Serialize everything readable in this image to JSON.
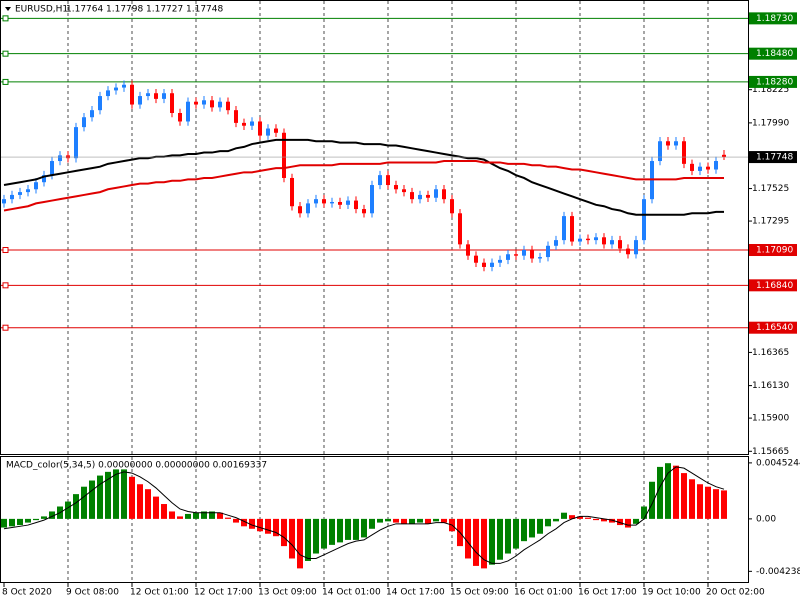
{
  "chart_data": [
    {
      "type": "candlestick",
      "title": "EURUSD,H1",
      "categories": [
        "8 Oct 2020",
        null,
        null,
        null,
        null,
        null,
        null,
        null,
        "9 Oct 08:00",
        null,
        null,
        null,
        null,
        null,
        null,
        null,
        "12 Oct 01:00",
        null,
        null,
        null,
        null,
        null,
        null,
        null,
        "12 Oct 17:00",
        null,
        null,
        null,
        null,
        null,
        null,
        null,
        "13 Oct 09:00",
        null,
        null,
        null,
        null,
        null,
        null,
        null,
        "14 Oct 01:00",
        null,
        null,
        null,
        null,
        null,
        null,
        null,
        "14 Oct 17:00",
        null,
        null,
        null,
        null,
        null,
        null,
        null,
        "15 Oct 09:00",
        null,
        null,
        null,
        null,
        null,
        null,
        null,
        "16 Oct 01:00",
        null,
        null,
        null,
        null,
        null,
        null,
        null,
        "16 Oct 17:00",
        null,
        null,
        null,
        null,
        null,
        null,
        null,
        "19 Oct 10:00",
        null,
        null,
        null,
        null,
        null,
        null,
        null,
        "20 Oct 02:00",
        null,
        null
      ],
      "open": [
        1.1742,
        1.1745,
        1.1748,
        1.175,
        1.1752,
        1.1757,
        1.1762,
        1.1772,
        1.1776,
        1.1774,
        1.1796,
        1.1803,
        1.1808,
        1.1818,
        1.1822,
        1.1824,
        1.1826,
        1.1812,
        1.1818,
        1.182,
        1.1816,
        1.182,
        1.1806,
        1.18,
        1.1814,
        1.1812,
        1.1815,
        1.181,
        1.1814,
        1.1808,
        1.1799,
        1.1797,
        1.18,
        1.179,
        1.1795,
        1.1792,
        1.176,
        1.174,
        1.1735,
        1.1742,
        1.1745,
        1.1742,
        1.1743,
        1.1741,
        1.1744,
        1.1738,
        1.1735,
        1.1755,
        1.1762,
        1.1755,
        1.1752,
        1.175,
        1.1745,
        1.1748,
        1.1746,
        1.1752,
        1.1745,
        1.1735,
        1.1713,
        1.1705,
        1.17,
        1.1697,
        1.17,
        1.1702,
        1.1706,
        1.1705,
        1.1709,
        1.1703,
        1.1704,
        1.1712,
        1.1716,
        1.1733,
        1.1715,
        1.1717,
        1.1716,
        1.1718,
        1.1713,
        1.1716,
        1.171,
        1.1706,
        1.1716,
        1.1745,
        1.1772,
        1.1786,
        1.1783,
        1.1786,
        1.177,
        1.1765,
        1.1768,
        1.1766,
        1.17764
      ],
      "high": [
        1.1748,
        1.1751,
        1.1753,
        1.1755,
        1.176,
        1.1765,
        1.1775,
        1.1779,
        1.1779,
        1.1799,
        1.1806,
        1.1811,
        1.1821,
        1.1825,
        1.1827,
        1.1829,
        1.1829,
        1.1821,
        1.1823,
        1.1823,
        1.1823,
        1.1823,
        1.1809,
        1.1817,
        1.1817,
        1.1818,
        1.1818,
        1.1817,
        1.1817,
        1.1811,
        1.1802,
        1.1803,
        1.1803,
        1.1798,
        1.1798,
        1.1795,
        1.1763,
        1.1743,
        1.1745,
        1.1748,
        1.1748,
        1.1746,
        1.1746,
        1.1747,
        1.1747,
        1.1741,
        1.1758,
        1.1765,
        1.1765,
        1.1758,
        1.1755,
        1.1753,
        1.1751,
        1.1751,
        1.1755,
        1.1755,
        1.1748,
        1.1738,
        1.1716,
        1.1708,
        1.1703,
        1.1703,
        1.1705,
        1.1709,
        1.1709,
        1.1712,
        1.1712,
        1.1707,
        1.1715,
        1.1719,
        1.1736,
        1.1736,
        1.172,
        1.172,
        1.1721,
        1.1721,
        1.1719,
        1.1719,
        1.1713,
        1.1719,
        1.1748,
        1.1775,
        1.1789,
        1.1789,
        1.1789,
        1.1789,
        1.1773,
        1.1771,
        1.1771,
        1.1775,
        1.17798
      ],
      "low": [
        1.1739,
        1.1742,
        1.1745,
        1.1747,
        1.1749,
        1.1754,
        1.1759,
        1.1769,
        1.1771,
        1.1771,
        1.1793,
        1.18,
        1.1805,
        1.1815,
        1.1819,
        1.1821,
        1.1809,
        1.1809,
        1.1815,
        1.1813,
        1.1813,
        1.1803,
        1.1797,
        1.1797,
        1.1809,
        1.1809,
        1.1807,
        1.1807,
        1.1805,
        1.1796,
        1.1794,
        1.1794,
        1.1787,
        1.1787,
        1.1789,
        1.1757,
        1.1737,
        1.1732,
        1.1732,
        1.1739,
        1.1739,
        1.1739,
        1.1738,
        1.1738,
        1.1735,
        1.1732,
        1.1732,
        1.1752,
        1.1752,
        1.1749,
        1.1747,
        1.1742,
        1.1742,
        1.1743,
        1.1743,
        1.1742,
        1.1732,
        1.171,
        1.1702,
        1.1697,
        1.1694,
        1.1694,
        1.1697,
        1.1699,
        1.1702,
        1.1702,
        1.17,
        1.17,
        1.1701,
        1.1709,
        1.1713,
        1.1712,
        1.1712,
        1.1713,
        1.1713,
        1.171,
        1.171,
        1.1707,
        1.1703,
        1.1703,
        1.1713,
        1.1742,
        1.1769,
        1.178,
        1.178,
        1.1767,
        1.1762,
        1.1762,
        1.1763,
        1.1763,
        1.17727
      ],
      "close": [
        1.1745,
        1.1748,
        1.175,
        1.1752,
        1.1757,
        1.1762,
        1.1772,
        1.1776,
        1.1774,
        1.1796,
        1.1803,
        1.1808,
        1.1818,
        1.1822,
        1.1824,
        1.1826,
        1.1812,
        1.1818,
        1.182,
        1.1816,
        1.182,
        1.1806,
        1.18,
        1.1814,
        1.1812,
        1.1815,
        1.181,
        1.1814,
        1.1808,
        1.1799,
        1.1797,
        1.18,
        1.179,
        1.1795,
        1.1792,
        1.176,
        1.174,
        1.1735,
        1.1742,
        1.1745,
        1.1742,
        1.1743,
        1.1741,
        1.1744,
        1.1738,
        1.1735,
        1.1755,
        1.1762,
        1.1755,
        1.1752,
        1.175,
        1.1745,
        1.1748,
        1.1746,
        1.1752,
        1.1745,
        1.1735,
        1.1713,
        1.1705,
        1.17,
        1.1697,
        1.17,
        1.1702,
        1.1706,
        1.1705,
        1.1709,
        1.1703,
        1.1704,
        1.1712,
        1.1716,
        1.1733,
        1.1715,
        1.1717,
        1.1716,
        1.1718,
        1.1713,
        1.1716,
        1.171,
        1.1706,
        1.1716,
        1.1745,
        1.1772,
        1.1786,
        1.1783,
        1.1786,
        1.177,
        1.1765,
        1.1768,
        1.1766,
        1.1772,
        1.17748
      ],
      "up_color": "#1e7fff",
      "down_color": "#ff0000",
      "overlays": [
        {
          "color": "#000000",
          "values": [
            1.1755,
            1.1756,
            1.1757,
            1.1758,
            1.1759,
            1.1761,
            1.1762,
            1.1763,
            1.1764,
            1.1765,
            1.1766,
            1.1767,
            1.1768,
            1.177,
            1.1771,
            1.1772,
            1.1773,
            1.1774,
            1.1774,
            1.1775,
            1.1775,
            1.1776,
            1.1776,
            1.1777,
            1.1777,
            1.1778,
            1.1778,
            1.1779,
            1.1779,
            1.1781,
            1.1782,
            1.1784,
            1.1785,
            1.1786,
            1.1787,
            1.1787,
            1.1787,
            1.1787,
            1.1787,
            1.1786,
            1.1786,
            1.1786,
            1.1785,
            1.1785,
            1.1785,
            1.1784,
            1.1784,
            1.1784,
            1.1783,
            1.1783,
            1.1782,
            1.1781,
            1.178,
            1.1779,
            1.1778,
            1.1777,
            1.1776,
            1.1775,
            1.1774,
            1.1774,
            1.1773,
            1.177,
            1.1767,
            1.1765,
            1.1762,
            1.176,
            1.1757,
            1.1755,
            1.1753,
            1.1751,
            1.1749,
            1.1747,
            1.1745,
            1.1743,
            1.1741,
            1.174,
            1.1738,
            1.1737,
            1.1735,
            1.1734,
            1.1734,
            1.1734,
            1.1734,
            1.1734,
            1.1734,
            1.1734,
            1.1735,
            1.1735,
            1.1735,
            1.1736,
            1.1736
          ]
        },
        {
          "color": "#e00000",
          "values": [
            1.1737,
            1.1738,
            1.1739,
            1.174,
            1.1742,
            1.1743,
            1.1744,
            1.1745,
            1.1746,
            1.1747,
            1.1748,
            1.1749,
            1.175,
            1.1752,
            1.1753,
            1.1754,
            1.1755,
            1.1756,
            1.1756,
            1.1757,
            1.1757,
            1.1758,
            1.1758,
            1.1759,
            1.1759,
            1.176,
            1.176,
            1.1761,
            1.1762,
            1.1763,
            1.1764,
            1.1764,
            1.1765,
            1.1766,
            1.1767,
            1.1767,
            1.1768,
            1.1769,
            1.1769,
            1.1769,
            1.1769,
            1.1769,
            1.177,
            1.177,
            1.177,
            1.177,
            1.177,
            1.177,
            1.1771,
            1.1771,
            1.1771,
            1.1771,
            1.1771,
            1.1771,
            1.1771,
            1.1772,
            1.1772,
            1.1772,
            1.1772,
            1.1772,
            1.1771,
            1.1771,
            1.1771,
            1.177,
            1.177,
            1.177,
            1.1769,
            1.1769,
            1.1768,
            1.1768,
            1.1767,
            1.1766,
            1.1766,
            1.1765,
            1.1764,
            1.1763,
            1.1762,
            1.1761,
            1.176,
            1.1759,
            1.1759,
            1.1759,
            1.1759,
            1.1759,
            1.1759,
            1.176,
            1.176,
            1.176,
            1.176,
            1.176,
            1.176
          ]
        }
      ],
      "levels": [
        {
          "value": 1.1873,
          "label": "1.18730",
          "color": "#008000"
        },
        {
          "value": 1.1848,
          "label": "1.18480",
          "color": "#008000"
        },
        {
          "value": 1.1828,
          "label": "1.18280",
          "color": "#008000"
        },
        {
          "value": 1.1709,
          "label": "1.17090",
          "color": "#e00000"
        },
        {
          "value": 1.1684,
          "label": "1.16840",
          "color": "#e00000"
        },
        {
          "value": 1.1654,
          "label": "1.16540",
          "color": "#e00000"
        }
      ],
      "ylim": [
        1.1566,
        1.1886
      ],
      "yticks": [
        1.18225,
        {
          "value": 1.1799,
          "label": "1.17990"
        },
        1.17525,
        1.17295,
        1.16365,
        {
          "value": 1.1613,
          "label": "1.16130"
        },
        {
          "value": 1.159,
          "label": "1.15900"
        },
        1.15665
      ],
      "grid": true
    },
    {
      "type": "macd",
      "title": "MACD_color(5,34,5) 0.00000000 0.00000000 0.00169337",
      "values": [
        -0.0007,
        -0.0006,
        -0.0005,
        -0.0003,
        -0.0001,
        0.0002,
        0.0006,
        0.001,
        0.0014,
        0.002,
        0.0026,
        0.0031,
        0.0035,
        0.0038,
        0.004,
        0.004,
        0.0034,
        0.0028,
        0.0024,
        0.0018,
        0.0012,
        0.0006,
        0.0002,
        0.0004,
        0.0005,
        0.0006,
        0.0006,
        0.0005,
        0.0001,
        -0.0003,
        -0.0006,
        -0.0008,
        -0.001,
        -0.0012,
        -0.0014,
        -0.0022,
        -0.0032,
        -0.004,
        -0.0034,
        -0.0028,
        -0.0024,
        -0.0021,
        -0.0019,
        -0.0017,
        -0.0017,
        -0.0015,
        -0.0008,
        -0.0003,
        -0.0002,
        -0.0003,
        -0.0004,
        -0.0004,
        -0.0003,
        -0.0004,
        -0.0002,
        -0.0003,
        -0.001,
        -0.0022,
        -0.0032,
        -0.0038,
        -0.004,
        -0.0037,
        -0.0033,
        -0.0028,
        -0.0024,
        -0.0018,
        -0.0015,
        -0.0012,
        -0.0006,
        -0.0002,
        0.0005,
        0.0003,
        0.0002,
        0.0001,
        -0.0001,
        -0.0002,
        -0.0003,
        -0.0005,
        -0.0007,
        -0.0004,
        0.001,
        0.003,
        0.0042,
        0.0045,
        0.0043,
        0.0037,
        0.0032,
        0.0028,
        0.0026,
        0.0024,
        0.0023
      ],
      "signal": [
        -0.0008,
        -0.0007,
        -0.0006,
        -0.0005,
        -0.0003,
        -0.0001,
        0.0002,
        0.0005,
        0.0009,
        0.0013,
        0.0018,
        0.0023,
        0.0028,
        0.0032,
        0.0036,
        0.0038,
        0.0037,
        0.0034,
        0.003,
        0.0025,
        0.0019,
        0.0013,
        0.0008,
        0.0006,
        0.0005,
        0.0005,
        0.0005,
        0.0005,
        0.0003,
        0.0001,
        -0.0002,
        -0.0005,
        -0.0007,
        -0.0009,
        -0.0011,
        -0.0015,
        -0.0021,
        -0.0029,
        -0.0032,
        -0.0032,
        -0.0029,
        -0.0026,
        -0.0023,
        -0.002,
        -0.0018,
        -0.0017,
        -0.0013,
        -0.0009,
        -0.0006,
        -0.0004,
        -0.0004,
        -0.0004,
        -0.0004,
        -0.0004,
        -0.0003,
        -0.0003,
        -0.0005,
        -0.0011,
        -0.0019,
        -0.0027,
        -0.0033,
        -0.0036,
        -0.0036,
        -0.0034,
        -0.003,
        -0.0025,
        -0.0021,
        -0.0017,
        -0.0012,
        -0.0008,
        -0.0003,
        0.0,
        0.0002,
        0.0002,
        0.0001,
        0.0,
        -0.0001,
        -0.0003,
        -0.0005,
        -0.0005,
        0.0,
        0.0012,
        0.0026,
        0.0037,
        0.0042,
        0.0041,
        0.0037,
        0.0033,
        0.0029,
        0.0026,
        0.0024
      ],
      "up_color": "#008000",
      "down_color": "#ff0000",
      "signal_color": "#000000",
      "ylim": [
        -0.0051,
        0.005
      ],
      "yticks": [
        0.0045244,
        {
          "value": 0,
          "label": "0.00"
        },
        -0.004238
      ]
    }
  ]
}
